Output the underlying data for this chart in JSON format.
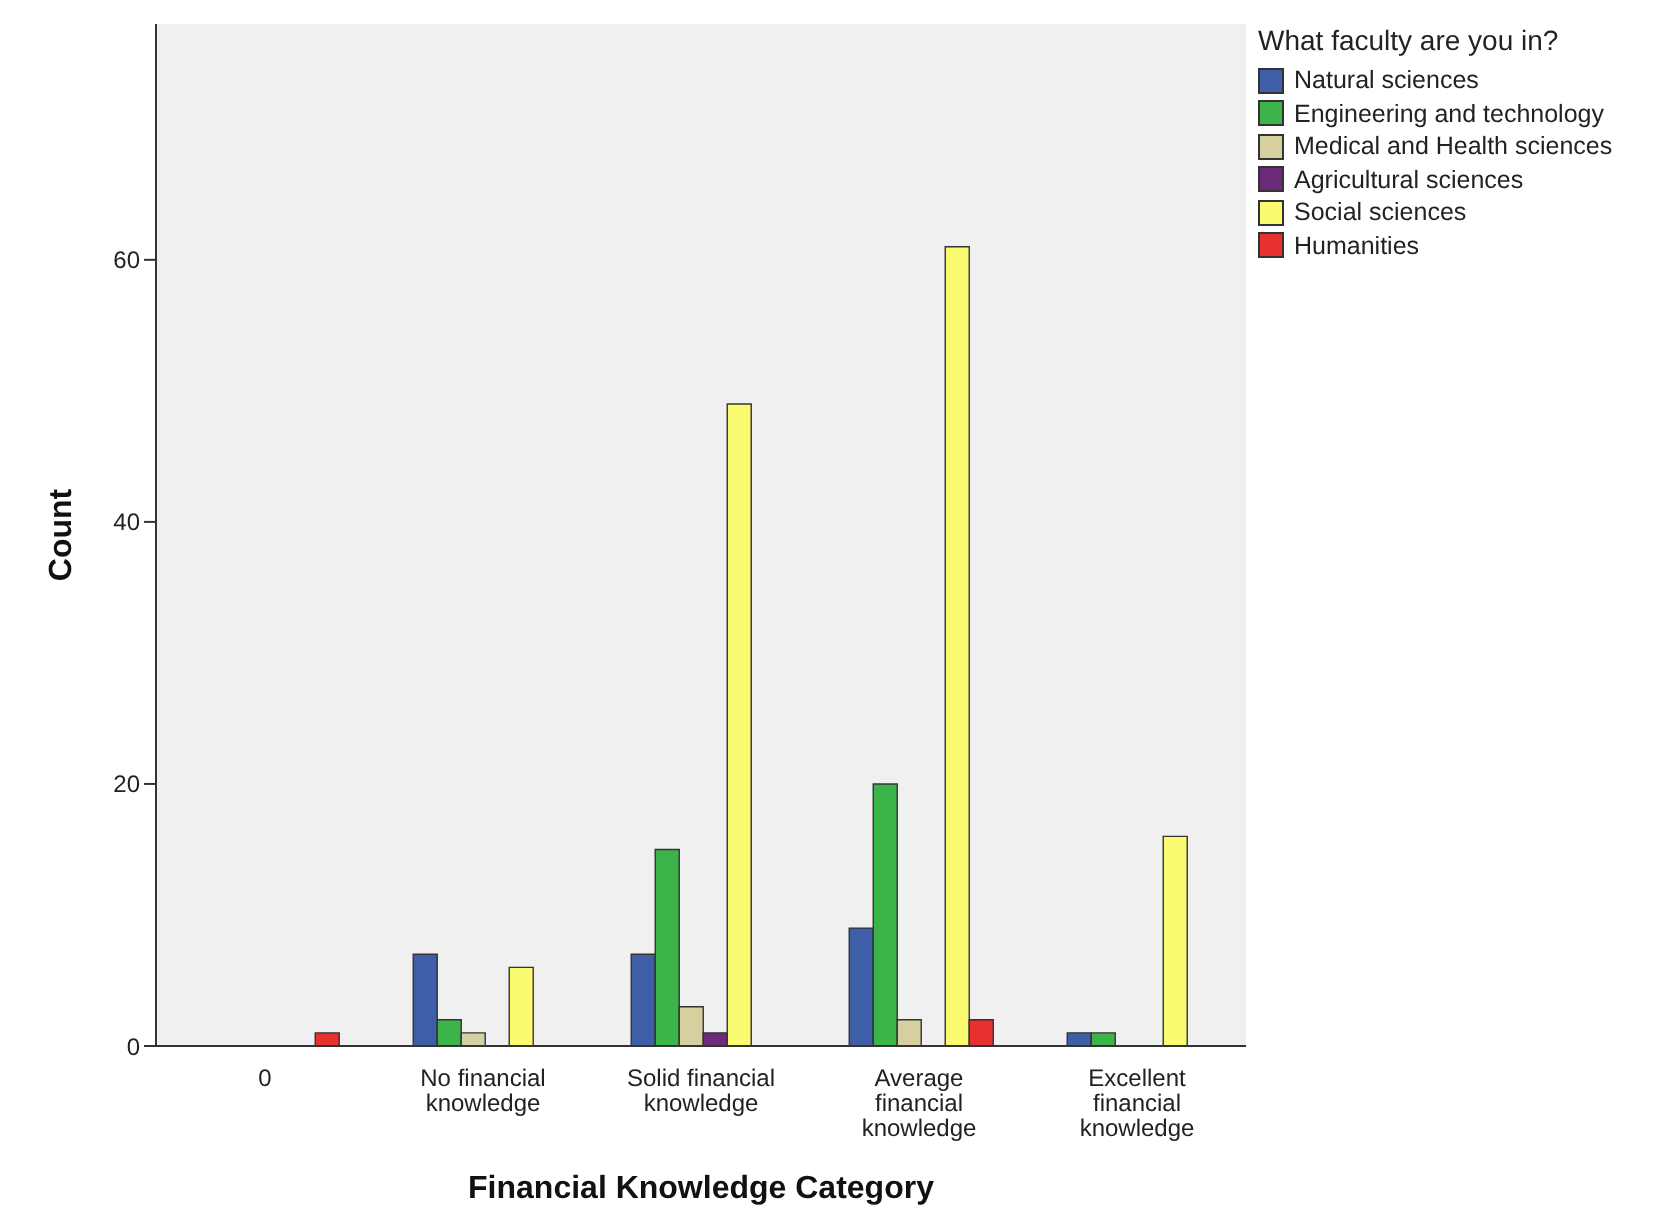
{
  "chart_data": {
    "type": "bar",
    "xlabel": "Financial Knowledge Category",
    "ylabel": "Count",
    "legend_title": "What faculty are you in?",
    "categories": [
      "0",
      "No financial knowledge",
      "Solid financial knowledge",
      "Average financial knowledge",
      "Excellent financial knowledge"
    ],
    "series": [
      {
        "name": "Natural sciences",
        "color": "#3f5ea8",
        "values": [
          0,
          7,
          7,
          9,
          1
        ]
      },
      {
        "name": "Engineering and technology",
        "color": "#3cb44a",
        "values": [
          0,
          2,
          15,
          20,
          1
        ]
      },
      {
        "name": "Medical and Health sciences",
        "color": "#d6d0a0",
        "values": [
          0,
          1,
          3,
          2,
          0
        ]
      },
      {
        "name": "Agricultural sciences",
        "color": "#6b2a7a",
        "values": [
          0,
          0,
          1,
          0,
          0
        ]
      },
      {
        "name": "Social sciences",
        "color": "#fbfb72",
        "values": [
          0,
          6,
          49,
          61,
          16
        ]
      },
      {
        "name": "Humanities",
        "color": "#e8302e",
        "values": [
          1,
          0,
          0,
          2,
          0
        ]
      }
    ],
    "ylim": [
      0,
      78
    ],
    "yticks": [
      0,
      20,
      40,
      60
    ],
    "grid": false,
    "legend": "top right"
  }
}
